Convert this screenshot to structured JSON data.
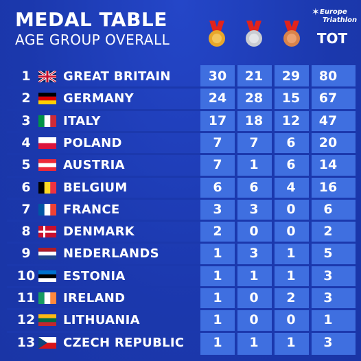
{
  "header": {
    "title": "MEDAL TABLE",
    "subtitle": "AGE GROUP OVERALL",
    "logo_line1": "Europe",
    "logo_line2": "Triathlon",
    "tot_label": "TOT"
  },
  "medal_colors": {
    "gold": "#e8a72a",
    "silver": "#c9ccd2",
    "bronze": "#d9834a",
    "ribbon": "#e2231a"
  },
  "colors": {
    "background": "#1d3cb6",
    "table_columns": "#3f6fe0"
  },
  "rows": [
    {
      "rank": "1",
      "country": "GREAT BRITAIN",
      "flag": "gb-flag-icon",
      "gold": "30",
      "silver": "21",
      "bronze": "29",
      "total": "80"
    },
    {
      "rank": "2",
      "country": "GERMANY",
      "flag": "de-flag-icon",
      "gold": "24",
      "silver": "28",
      "bronze": "15",
      "total": "67"
    },
    {
      "rank": "3",
      "country": "ITALY",
      "flag": "it-flag-icon",
      "gold": "17",
      "silver": "18",
      "bronze": "12",
      "total": "47"
    },
    {
      "rank": "4",
      "country": "POLAND",
      "flag": "pl-flag-icon",
      "gold": "7",
      "silver": "7",
      "bronze": "6",
      "total": "20"
    },
    {
      "rank": "5",
      "country": "AUSTRIA",
      "flag": "at-flag-icon",
      "gold": "7",
      "silver": "1",
      "bronze": "6",
      "total": "14"
    },
    {
      "rank": "6",
      "country": "BELGIUM",
      "flag": "be-flag-icon",
      "gold": "6",
      "silver": "6",
      "bronze": "4",
      "total": "16"
    },
    {
      "rank": "7",
      "country": "FRANCE",
      "flag": "fr-flag-icon",
      "gold": "3",
      "silver": "3",
      "bronze": "0",
      "total": "6"
    },
    {
      "rank": "8",
      "country": "DENMARK",
      "flag": "dk-flag-icon",
      "gold": "2",
      "silver": "0",
      "bronze": "0",
      "total": "2"
    },
    {
      "rank": "9",
      "country": "NEDERLANDS",
      "flag": "nl-flag-icon",
      "gold": "1",
      "silver": "3",
      "bronze": "1",
      "total": "5"
    },
    {
      "rank": "10",
      "country": "ESTONIA",
      "flag": "ee-flag-icon",
      "gold": "1",
      "silver": "1",
      "bronze": "1",
      "total": "3"
    },
    {
      "rank": "11",
      "country": "IRELAND",
      "flag": "ie-flag-icon",
      "gold": "1",
      "silver": "0",
      "bronze": "2",
      "total": "3"
    },
    {
      "rank": "12",
      "country": "LITHUANIA",
      "flag": "lt-flag-icon",
      "gold": "1",
      "silver": "0",
      "bronze": "0",
      "total": "1"
    },
    {
      "rank": "13",
      "country": "CZECH REPUBLIC",
      "flag": "cz-flag-icon",
      "gold": "1",
      "silver": "1",
      "bronze": "1",
      "total": "3"
    }
  ]
}
